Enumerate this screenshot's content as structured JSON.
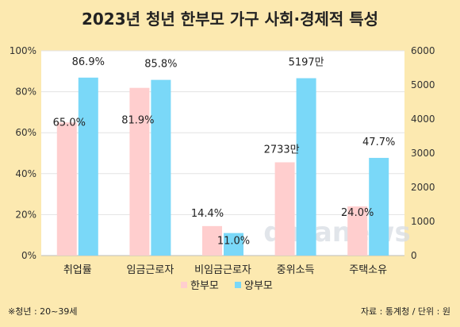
{
  "chart_data": {
    "type": "bar",
    "title": "2023년 청년 한부모 가구 사회·경제적 특성",
    "categories": [
      "취업률",
      "임금근로자",
      "비임금근로자",
      "중위소득",
      "주택소유"
    ],
    "series": [
      {
        "name": "한부모",
        "color": "#ffcece",
        "values": [
          65.0,
          81.9,
          14.4,
          2733,
          24.0
        ],
        "labels": [
          "65.0%",
          "81.9%",
          "14.4%",
          "2733만",
          "24.0%"
        ]
      },
      {
        "name": "양부모",
        "color": "#7ad8f8",
        "values": [
          86.9,
          85.8,
          11.0,
          5197,
          47.7
        ],
        "labels": [
          "86.9%",
          "85.8%",
          "11.0%",
          "5197만",
          "47.7%"
        ]
      }
    ],
    "axis_of_category": [
      "left",
      "left",
      "left",
      "right",
      "left"
    ],
    "left_axis": {
      "min": 0,
      "max": 100,
      "ticks": [
        "0%",
        "20%",
        "40%",
        "60%",
        "80%",
        "100%"
      ]
    },
    "right_axis": {
      "min": 0,
      "max": 6000,
      "ticks": [
        "0",
        "1000",
        "2000",
        "3000",
        "4000",
        "5000",
        "6000"
      ]
    },
    "grid": true,
    "legend_position": "bottom"
  },
  "footnote": "※청년 : 20~39세",
  "source": "자료 : 통계청 / 단위 : 원",
  "watermark": "datanews"
}
